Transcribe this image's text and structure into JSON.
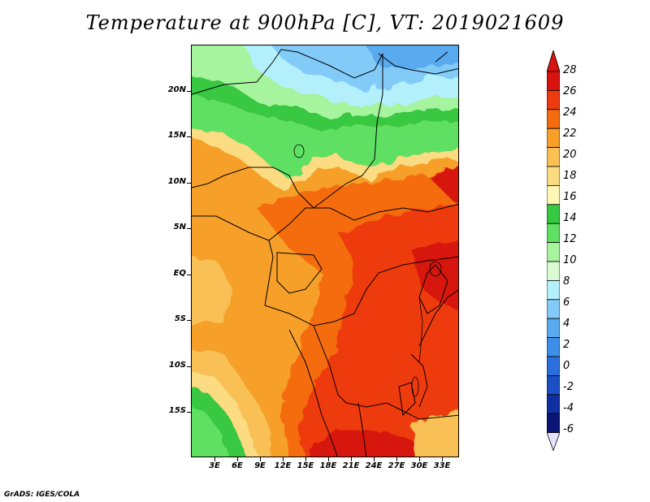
{
  "title": "Temperature at 900hPa [C], VT: 2019021609",
  "credit": "GrADS: IGES/COLA",
  "map": {
    "lat_labels": [
      "20N",
      "15N",
      "10N",
      "5N",
      "EQ",
      "5S",
      "10S",
      "15S"
    ],
    "lon_labels": [
      "3E",
      "6E",
      "9E",
      "12E",
      "15E",
      "18E",
      "21E",
      "24E",
      "27E",
      "30E",
      "33E"
    ]
  },
  "legend": {
    "labels": [
      "28",
      "26",
      "24",
      "22",
      "20",
      "18",
      "16",
      "14",
      "12",
      "10",
      "8",
      "6",
      "4",
      "2",
      "0",
      "-2",
      "-4",
      "-6"
    ],
    "colors": [
      "#d7120f",
      "#ee3a0f",
      "#f46c10",
      "#f6a02a",
      "#f9c054",
      "#fbdc82",
      "#fef7b5",
      "#37c842",
      "#5fe063",
      "#a6f49e",
      "#d8fbd2",
      "#b4effc",
      "#82cbf8",
      "#5aaaf0",
      "#3d8ee8",
      "#2a6fdb",
      "#1b4fc4",
      "#0f2fa2",
      "#0b1578"
    ],
    "over_color": "#d7120f",
    "under_color": "#e6e1fa"
  }
}
